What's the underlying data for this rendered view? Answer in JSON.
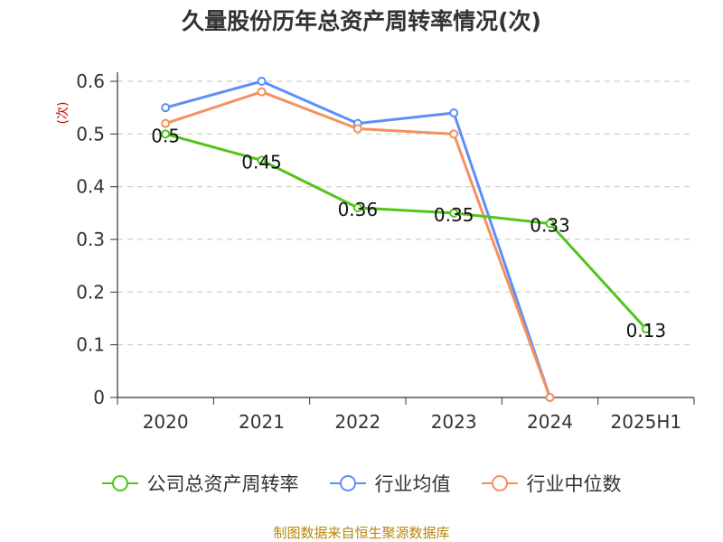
{
  "chart_data": {
    "type": "line",
    "title": "久量股份历年总资产周转率情况(次)",
    "ylabel": "(次)",
    "categories": [
      "2020",
      "2021",
      "2022",
      "2023",
      "2024",
      "2025H1"
    ],
    "ylim": [
      0,
      0.6
    ],
    "yticks": [
      "0",
      "0.1",
      "0.2",
      "0.3",
      "0.4",
      "0.5",
      "0.6"
    ],
    "grid": true,
    "legend_position": "bottom",
    "series": [
      {
        "name": "公司总资产周转率",
        "color": "#52c41a",
        "values": [
          0.5,
          0.45,
          0.36,
          0.35,
          0.33,
          0.13
        ],
        "labels": [
          "0.5",
          "0.45",
          "0.36",
          "0.35",
          "0.33",
          "0.13"
        ],
        "show_labels": true
      },
      {
        "name": "行业均值",
        "color": "#5b8ff9",
        "values": [
          0.55,
          0.6,
          0.52,
          0.54,
          0,
          null
        ],
        "show_labels": false
      },
      {
        "name": "行业中位数",
        "color": "#f6905e",
        "values": [
          0.52,
          0.58,
          0.51,
          0.5,
          0,
          null
        ],
        "show_labels": false
      }
    ]
  },
  "source": "制图数据来自恒生聚源数据库",
  "colors": {
    "ylabel": "#cc0000",
    "axis": "#333333",
    "grid": "#cccccc"
  }
}
